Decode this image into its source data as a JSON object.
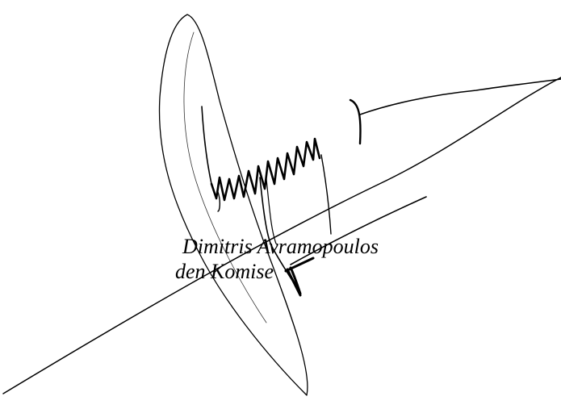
{
  "signatory": {
    "name": "Dimitris Avramopoulos",
    "role": "den Komise"
  },
  "colors": {
    "ink": "#000000",
    "paper": "#ffffff"
  }
}
